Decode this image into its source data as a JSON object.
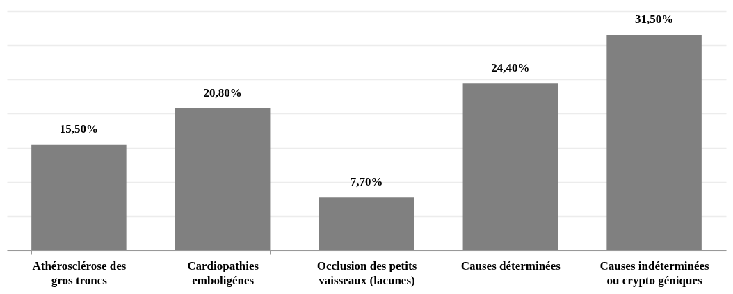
{
  "chart_data": {
    "type": "bar",
    "categories": [
      "Athérosclérose des gros troncs",
      "Cardiopathies emboligénes",
      "Occlusion des petits vaisseaux (lacunes)",
      "Causes déterminées",
      "Causes indéterminées ou crypto géniques"
    ],
    "values": [
      15.5,
      20.8,
      7.7,
      24.4,
      31.5
    ],
    "value_labels": [
      "15,50%",
      "20,80%",
      "7,70%",
      "24,40%",
      "31,50%"
    ],
    "color": "#808080",
    "ylim": [
      0,
      35
    ],
    "yticks": [
      {
        "value": 0,
        "label": null
      },
      {
        "value": 5,
        "label": null
      },
      {
        "value": 10,
        "label": null
      },
      {
        "value": 15,
        "label": null
      },
      {
        "value": 20,
        "label": null
      },
      {
        "value": 25,
        "label": null
      },
      {
        "value": 30,
        "label": null
      },
      {
        "value": 35,
        "label": null
      }
    ],
    "grid": "y",
    "tick_labels": "x"
  }
}
